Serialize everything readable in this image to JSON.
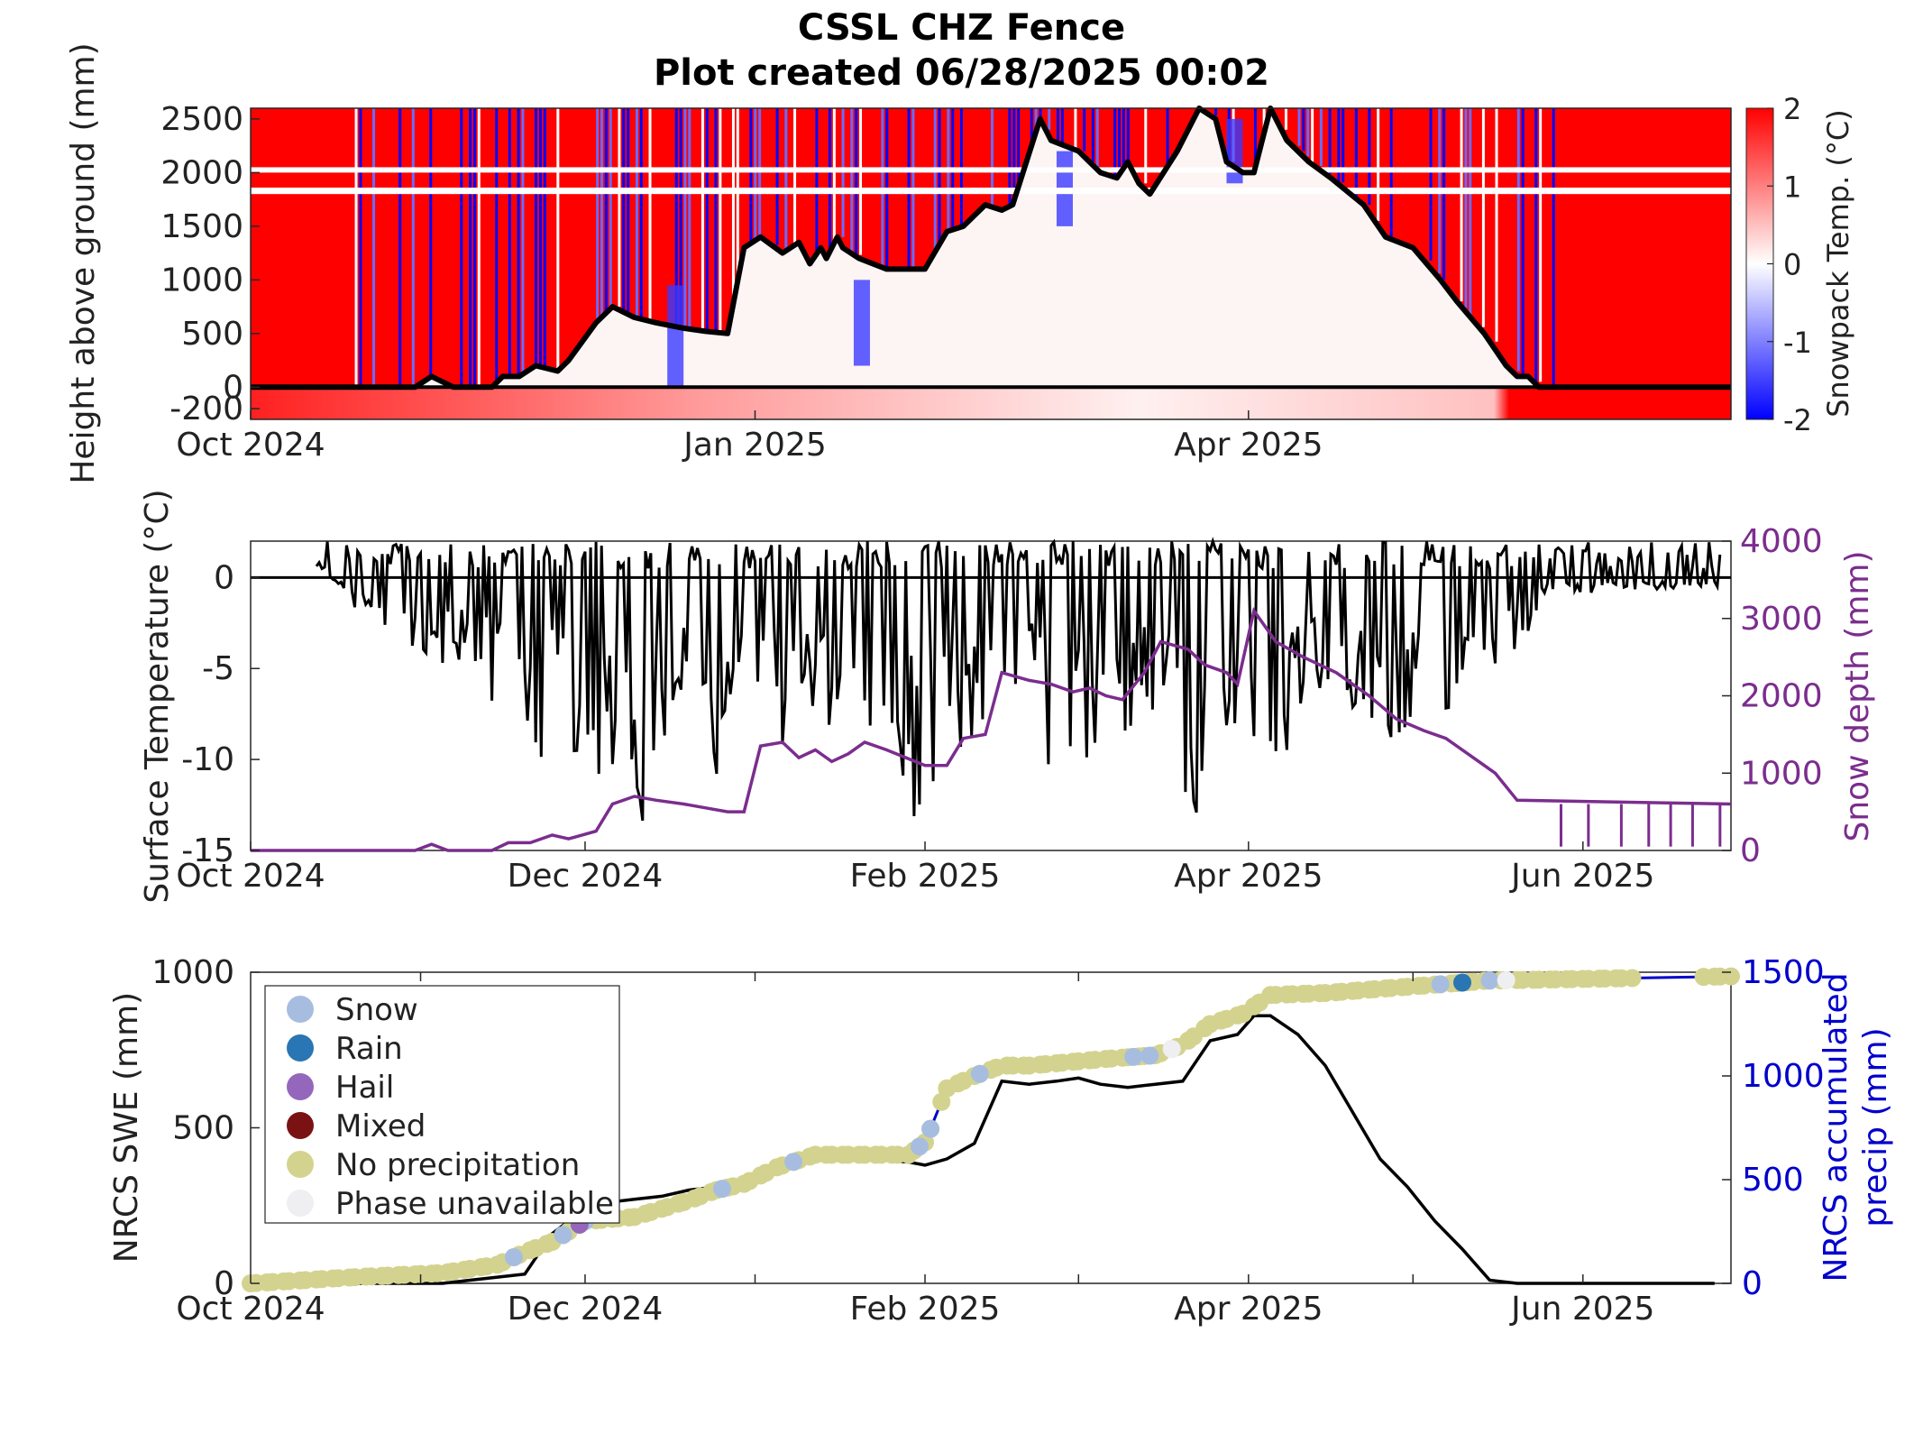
{
  "title": "CSSL CHZ Fence",
  "subtitle": "Plot created 06/28/2025 00:02",
  "chart_data": [
    {
      "type": "heatmap",
      "ylabel": "Height above ground (mm)",
      "colorbar_label": "Snowpack Temp. (°C)",
      "colorbar_range": [
        -2,
        2
      ],
      "colorbar_ticks": [
        "2",
        "1",
        "0",
        "-1",
        "-2"
      ],
      "colormap": {
        "low": "#0000ff",
        "mid": "#ffffff",
        "high": "#ff0000"
      },
      "yticks": [
        "2500",
        "2000",
        "1500",
        "1000",
        "500",
        "0",
        "-200"
      ],
      "ytick_values": [
        2500,
        2000,
        1500,
        1000,
        500,
        0,
        -200
      ],
      "ylim": [
        -300,
        2600
      ],
      "xticks": [
        "Oct 2024",
        "Jan 2025",
        "Apr 2025"
      ],
      "xtick_dates": [
        "2024-10-01",
        "2025-01-01",
        "2025-04-01"
      ],
      "xlim": [
        "2024-10-01",
        "2025-06-28"
      ],
      "snow_depth_line": {
        "color": "#000000",
        "x": [
          "2024-10-01",
          "2024-10-31",
          "2024-11-03",
          "2024-11-07",
          "2024-11-14",
          "2024-11-16",
          "2024-11-19",
          "2024-11-22",
          "2024-11-26",
          "2024-11-28",
          "2024-12-03",
          "2024-12-06",
          "2024-12-10",
          "2024-12-14",
          "2024-12-19",
          "2024-12-23",
          "2024-12-27",
          "2024-12-30",
          "2025-01-02",
          "2025-01-06",
          "2025-01-09",
          "2025-01-11",
          "2025-01-13",
          "2025-01-14",
          "2025-01-16",
          "2025-01-17",
          "2025-01-20",
          "2025-01-25",
          "2025-02-01",
          "2025-02-05",
          "2025-02-08",
          "2025-02-12",
          "2025-02-15",
          "2025-02-17",
          "2025-02-22",
          "2025-02-24",
          "2025-03-01",
          "2025-03-05",
          "2025-03-08",
          "2025-03-10",
          "2025-03-12",
          "2025-03-14",
          "2025-03-19",
          "2025-03-23",
          "2025-03-26",
          "2025-03-28",
          "2025-03-31",
          "2025-04-02",
          "2025-04-05",
          "2025-04-08",
          "2025-04-12",
          "2025-04-16",
          "2025-04-22",
          "2025-04-26",
          "2025-05-01",
          "2025-05-06",
          "2025-05-09",
          "2025-05-14",
          "2025-05-18",
          "2025-05-20",
          "2025-05-22",
          "2025-05-24",
          "2025-06-28"
        ],
        "y": [
          0,
          0,
          100,
          0,
          0,
          100,
          100,
          200,
          150,
          250,
          600,
          750,
          650,
          600,
          550,
          520,
          500,
          1300,
          1400,
          1250,
          1350,
          1150,
          1300,
          1200,
          1400,
          1300,
          1200,
          1100,
          1100,
          1450,
          1500,
          1700,
          1650,
          1700,
          2500,
          2300,
          2200,
          2000,
          1950,
          2100,
          1900,
          1800,
          2200,
          2600,
          2500,
          2100,
          2000,
          2000,
          2600,
          2300,
          2100,
          1950,
          1700,
          1400,
          1300,
          1000,
          800,
          500,
          200,
          100,
          100,
          0,
          0
        ]
      }
    },
    {
      "type": "line",
      "ylabel": "Surface Temperature (°C)",
      "y2label": "Snow depth (mm)",
      "yticks": [
        "0",
        "-5",
        "-10",
        "-15"
      ],
      "ytick_values": [
        0,
        -5,
        -10,
        -15
      ],
      "ylim": [
        -15,
        2
      ],
      "y2ticks": [
        "4000",
        "3000",
        "2000",
        "1000",
        "0"
      ],
      "y2tick_values": [
        4000,
        3000,
        2000,
        1000,
        0
      ],
      "y2lim": [
        0,
        4000
      ],
      "xticks": [
        "Oct 2024",
        "Dec 2024",
        "Feb 2025",
        "Apr 2025",
        "Jun 2025"
      ],
      "xtick_dates": [
        "2024-10-01",
        "2024-12-01",
        "2025-02-01",
        "2025-04-01",
        "2025-06-01"
      ],
      "xlim": [
        "2024-10-01",
        "2025-06-28"
      ],
      "series": [
        {
          "color": "#000000",
          "x": [
            "2024-10-13",
            "2024-10-20",
            "2024-10-25",
            "2024-10-30",
            "2024-11-05",
            "2024-11-10",
            "2024-11-15",
            "2024-11-20",
            "2024-11-25",
            "2024-11-30",
            "2024-12-05",
            "2024-12-10",
            "2024-12-15",
            "2024-12-20",
            "2024-12-25",
            "2024-12-30",
            "2025-01-05",
            "2025-01-10",
            "2025-01-15",
            "2025-01-20",
            "2025-01-25",
            "2025-01-30",
            "2025-02-05",
            "2025-02-10",
            "2025-02-15",
            "2025-02-20",
            "2025-02-25",
            "2025-03-02",
            "2025-03-07",
            "2025-03-12",
            "2025-03-17",
            "2025-03-22",
            "2025-03-27",
            "2025-04-01",
            "2025-04-06",
            "2025-04-11",
            "2025-04-16",
            "2025-04-21",
            "2025-04-26",
            "2025-05-01",
            "2025-05-06",
            "2025-05-11",
            "2025-05-16",
            "2025-05-21",
            "2025-05-25",
            "2025-06-24",
            "2025-06-26"
          ],
          "y": [
            1,
            -2,
            -3,
            -4,
            -5,
            -6,
            -8,
            -12,
            -9,
            -13,
            -10,
            -15,
            -9,
            -8,
            -11,
            -5,
            -10,
            -7,
            -9,
            -12,
            -8,
            -14,
            -10,
            -9,
            -11,
            -8,
            -13,
            -10,
            -12,
            -7,
            -9,
            -14,
            -8,
            -10,
            -12,
            -6,
            -9,
            -8,
            -11,
            -7,
            -8,
            -6,
            -5,
            -4,
            -1,
            -0.5,
            -1
          ]
        },
        {
          "color": "#7b2d8e",
          "x": [
            "2024-10-01",
            "2024-10-31",
            "2024-11-03",
            "2024-11-06",
            "2024-11-14",
            "2024-11-17",
            "2024-11-21",
            "2024-11-25",
            "2024-11-28",
            "2024-12-03",
            "2024-12-06",
            "2024-12-10",
            "2024-12-14",
            "2024-12-19",
            "2024-12-23",
            "2024-12-27",
            "2024-12-30",
            "2025-01-02",
            "2025-01-06",
            "2025-01-09",
            "2025-01-12",
            "2025-01-15",
            "2025-01-18",
            "2025-01-21",
            "2025-01-25",
            "2025-02-01",
            "2025-02-05",
            "2025-02-08",
            "2025-02-12",
            "2025-02-15",
            "2025-02-20",
            "2025-02-24",
            "2025-02-28",
            "2025-03-03",
            "2025-03-06",
            "2025-03-09",
            "2025-03-13",
            "2025-03-16",
            "2025-03-21",
            "2025-03-24",
            "2025-03-28",
            "2025-03-30",
            "2025-04-02",
            "2025-04-06",
            "2025-04-11",
            "2025-04-17",
            "2025-04-23",
            "2025-04-28",
            "2025-05-03",
            "2025-05-07",
            "2025-05-11",
            "2025-05-16",
            "2025-05-20",
            "2025-06-28"
          ],
          "y": [
            0,
            0,
            80,
            0,
            0,
            100,
            100,
            200,
            150,
            250,
            600,
            700,
            650,
            600,
            550,
            500,
            500,
            1350,
            1400,
            1200,
            1300,
            1150,
            1250,
            1400,
            1300,
            1100,
            1100,
            1450,
            1500,
            2300,
            2200,
            2150,
            2050,
            2100,
            2000,
            1950,
            2300,
            2700,
            2600,
            2400,
            2300,
            2150,
            3100,
            2700,
            2500,
            2300,
            2000,
            1700,
            1550,
            1450,
            1250,
            1000,
            650,
            600
          ]
        }
      ]
    },
    {
      "type": "line",
      "ylabel": "NRCS SWE (mm)",
      "y2label_lines": [
        "NRCS accumulated",
        "precip (mm)"
      ],
      "yticks": [
        "1000",
        "500",
        "0"
      ],
      "ytick_values": [
        1000,
        500,
        0
      ],
      "ylim": [
        0,
        1000
      ],
      "y2ticks": [
        "1500",
        "1000",
        "500",
        "0"
      ],
      "y2tick_values": [
        1500,
        1000,
        500,
        0
      ],
      "y2lim": [
        0,
        1500
      ],
      "xticks": [
        "Oct 2024",
        "Dec 2024",
        "Feb 2025",
        "Apr 2025",
        "Jun 2025"
      ],
      "xtick_dates": [
        "2024-10-01",
        "2024-12-01",
        "2025-02-01",
        "2025-04-01",
        "2025-06-01"
      ],
      "xlim": [
        "2024-10-01",
        "2025-06-28"
      ],
      "legend_position": "top-left",
      "legend": [
        {
          "label": "Snow",
          "color": "#a7bddf"
        },
        {
          "label": "Rain",
          "color": "#2a75b3"
        },
        {
          "label": "Hail",
          "color": "#9467bd"
        },
        {
          "label": "Mixed",
          "color": "#7a1214"
        },
        {
          "label": "No precipitation",
          "color": "#d3d38f"
        },
        {
          "label": "Phase unavailable",
          "color": "#efeff2"
        }
      ],
      "series": [
        {
          "color": "#000000",
          "axis": "left",
          "x": [
            "2024-10-01",
            "2024-11-05",
            "2024-11-10",
            "2024-11-15",
            "2024-11-20",
            "2024-11-25",
            "2024-12-01",
            "2024-12-05",
            "2024-12-10",
            "2024-12-15",
            "2024-12-20",
            "2024-12-25",
            "2024-12-30",
            "2025-01-05",
            "2025-01-10",
            "2025-01-15",
            "2025-01-20",
            "2025-01-25",
            "2025-01-29",
            "2025-02-01",
            "2025-02-05",
            "2025-02-10",
            "2025-02-15",
            "2025-02-20",
            "2025-02-25",
            "2025-03-01",
            "2025-03-05",
            "2025-03-10",
            "2025-03-15",
            "2025-03-20",
            "2025-03-25",
            "2025-03-30",
            "2025-04-02",
            "2025-04-05",
            "2025-04-10",
            "2025-04-15",
            "2025-04-20",
            "2025-04-25",
            "2025-04-30",
            "2025-05-05",
            "2025-05-10",
            "2025-05-15",
            "2025-05-20",
            "2025-05-25",
            "2025-05-30",
            "2025-06-25"
          ],
          "y": [
            0,
            0,
            10,
            20,
            30,
            160,
            240,
            260,
            270,
            280,
            300,
            310,
            320,
            360,
            400,
            405,
            400,
            395,
            390,
            380,
            400,
            450,
            650,
            640,
            650,
            660,
            640,
            630,
            640,
            650,
            780,
            800,
            860,
            860,
            800,
            700,
            550,
            400,
            310,
            200,
            110,
            10,
            0,
            0,
            0,
            0
          ]
        },
        {
          "color": "#0000cc",
          "axis": "right",
          "x": [
            "2024-10-01",
            "2024-10-20",
            "2024-11-05",
            "2024-11-15",
            "2024-11-20",
            "2024-11-25",
            "2024-12-01",
            "2024-12-10",
            "2024-12-20",
            "2024-12-25",
            "2024-12-30",
            "2025-01-05",
            "2025-01-12",
            "2025-01-20",
            "2025-01-29",
            "2025-02-01",
            "2025-02-05",
            "2025-02-10",
            "2025-02-15",
            "2025-02-20",
            "2025-03-05",
            "2025-03-15",
            "2025-03-20",
            "2025-03-25",
            "2025-03-31",
            "2025-04-05",
            "2025-04-15",
            "2025-04-25",
            "2025-05-05",
            "2025-05-15",
            "2025-06-28"
          ],
          "y": [
            0,
            30,
            50,
            90,
            150,
            200,
            300,
            320,
            400,
            450,
            480,
            560,
            620,
            620,
            620,
            680,
            940,
            1000,
            1050,
            1050,
            1080,
            1100,
            1150,
            1250,
            1300,
            1390,
            1400,
            1420,
            1440,
            1460,
            1480
          ]
        }
      ]
    }
  ]
}
